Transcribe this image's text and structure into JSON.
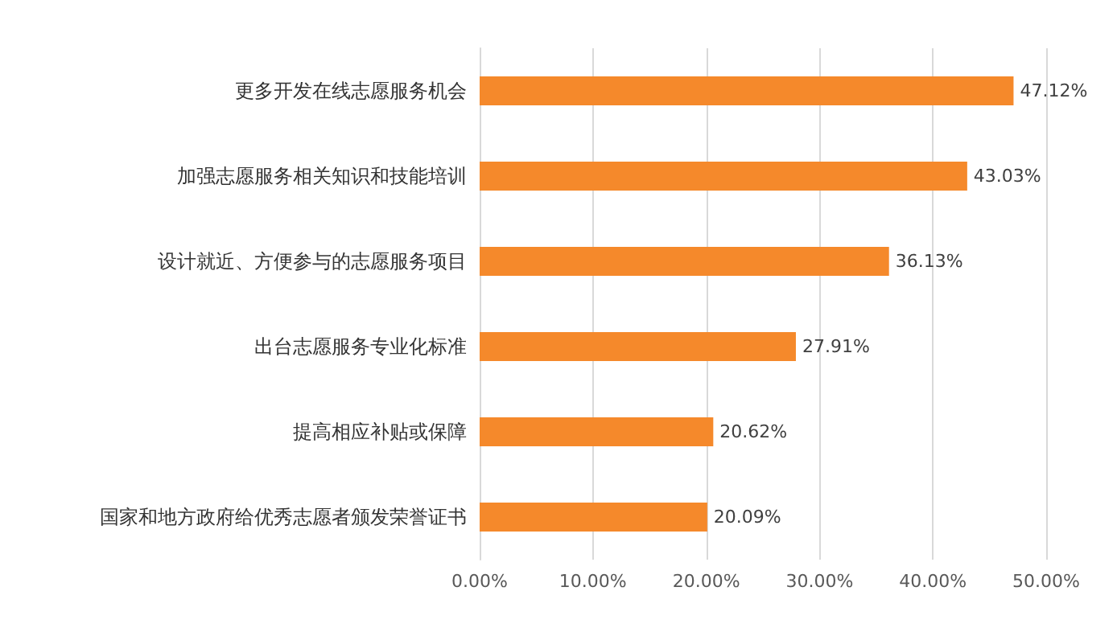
{
  "chart_data": {
    "type": "bar",
    "orientation": "horizontal",
    "categories": [
      "更多开发在线志愿服务机会",
      "加强志愿服务相关知识和技能培训",
      "设计就近、方便参与的志愿服务项目",
      "出台志愿服务专业化标准",
      "提高相应补贴或保障",
      "国家和地方政府给优秀志愿者颁发荣誉证书"
    ],
    "values": [
      47.12,
      43.03,
      36.13,
      27.91,
      20.62,
      20.09
    ],
    "value_labels": [
      "47.12%",
      "43.03%",
      "36.13%",
      "27.91%",
      "20.62%",
      "20.09%"
    ],
    "color": "#f5892b",
    "xlim": [
      0,
      50
    ],
    "xticks": [
      {
        "value": 0,
        "label": "0.00%"
      },
      {
        "value": 10,
        "label": "10.00%"
      },
      {
        "value": 20,
        "label": "20.00%"
      },
      {
        "value": 30,
        "label": "30.00%"
      },
      {
        "value": 40,
        "label": "40.00%"
      },
      {
        "value": 50,
        "label": "50.00%"
      }
    ],
    "grid": "x"
  }
}
